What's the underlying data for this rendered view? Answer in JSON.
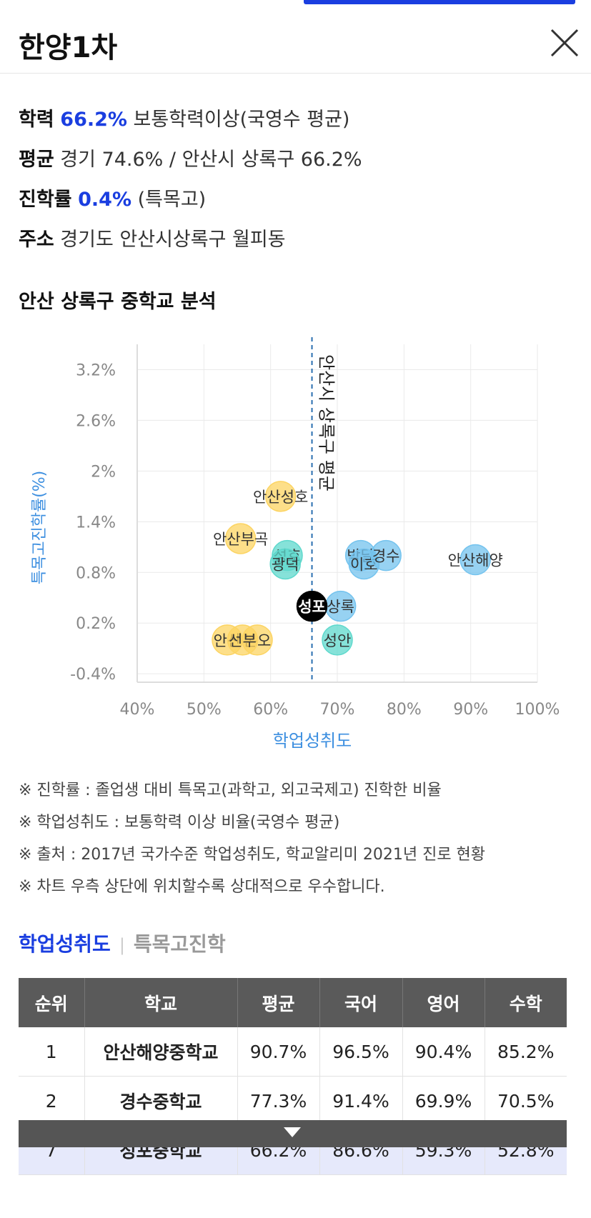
{
  "header": {
    "title": "한양1차"
  },
  "info": {
    "academic": {
      "label": "학력",
      "value": "66.2%",
      "desc": "보통학력이상(국영수 평균)"
    },
    "average": {
      "label": "평균",
      "text": "경기 74.6% / 안산시 상록구 66.2%"
    },
    "advance": {
      "label": "진학률",
      "value": "0.4%",
      "desc": "(특목고)"
    },
    "address": {
      "label": "주소",
      "text": "경기도 안산시상록구 월피동"
    }
  },
  "section_title": "안산 상록구 중학교 분석",
  "chart_data": {
    "type": "scatter",
    "xlabel": "학업성취도",
    "ylabel": "특목고진학률(%)",
    "xlim": [
      40,
      100
    ],
    "ylim": [
      -0.5,
      3.5
    ],
    "x_ticks": [
      "40%",
      "50%",
      "60%",
      "70%",
      "80%",
      "90%",
      "100%"
    ],
    "y_ticks": [
      "3.2%",
      "2.6%",
      "2%",
      "1.4%",
      "0.8%",
      "0.2%",
      "-0.4%"
    ],
    "reference_line": {
      "x": 66.2,
      "label": "안산시 상록구 평균"
    },
    "grid": true,
    "colors": {
      "yellow": "#fcd462",
      "teal": "#5ed8cc",
      "blue": "#74c3ee",
      "black": "#000000"
    },
    "points": [
      {
        "label": "안산성호",
        "x": 61.5,
        "y": 1.7,
        "color": "yellow"
      },
      {
        "label": "안산부곡",
        "x": 55.5,
        "y": 1.2,
        "color": "yellow"
      },
      {
        "label": "성호",
        "x": 62.5,
        "y": 1.0,
        "color": "teal"
      },
      {
        "label": "광덕",
        "x": 62.2,
        "y": 0.9,
        "color": "teal"
      },
      {
        "label": "박달",
        "x": 73.5,
        "y": 1.0,
        "color": "blue"
      },
      {
        "label": "이호",
        "x": 74.0,
        "y": 0.9,
        "color": "blue"
      },
      {
        "label": "경수",
        "x": 77.3,
        "y": 1.0,
        "color": "blue"
      },
      {
        "label": "안산해양",
        "x": 90.7,
        "y": 0.95,
        "color": "blue"
      },
      {
        "label": "성포",
        "x": 66.2,
        "y": 0.4,
        "color": "black"
      },
      {
        "label": "상록",
        "x": 70.5,
        "y": 0.4,
        "color": "blue"
      },
      {
        "label": "성안",
        "x": 70.0,
        "y": 0.0,
        "color": "teal"
      },
      {
        "label": "안산",
        "x": 53.5,
        "y": 0.0,
        "color": "yellow"
      },
      {
        "label": "본오",
        "x": 58.0,
        "y": 0.0,
        "color": "yellow"
      },
      {
        "label": "선부",
        "x": 55.8,
        "y": 0.0,
        "color": "yellow"
      }
    ]
  },
  "notes": [
    "※ 진학률 : 졸업생 대비 특목고(과학고, 외고국제고) 진학한 비율",
    "※ 학업성취도 : 보통학력 이상 비율(국영수 평균)",
    "※ 출처 : 2017년 국가수준 학업성취도, 학교알리미 2021년 진로 현황",
    "※ 차트 우측 상단에 위치할수록 상대적으로 우수합니다."
  ],
  "tabs": {
    "active": "학업성취도",
    "inactive": "특목고진학"
  },
  "table": {
    "headers": [
      "순위",
      "학교",
      "평균",
      "국어",
      "영어",
      "수학"
    ],
    "rows": [
      [
        "1",
        "안산해양중학교",
        "90.7%",
        "96.5%",
        "90.4%",
        "85.2%"
      ],
      [
        "2",
        "경수중학교",
        "77.3%",
        "91.4%",
        "69.9%",
        "70.5%"
      ],
      [
        "7",
        "성포중학교",
        "66.2%",
        "86.6%",
        "59.3%",
        "52.8%"
      ]
    ],
    "highlight_row": 2
  }
}
